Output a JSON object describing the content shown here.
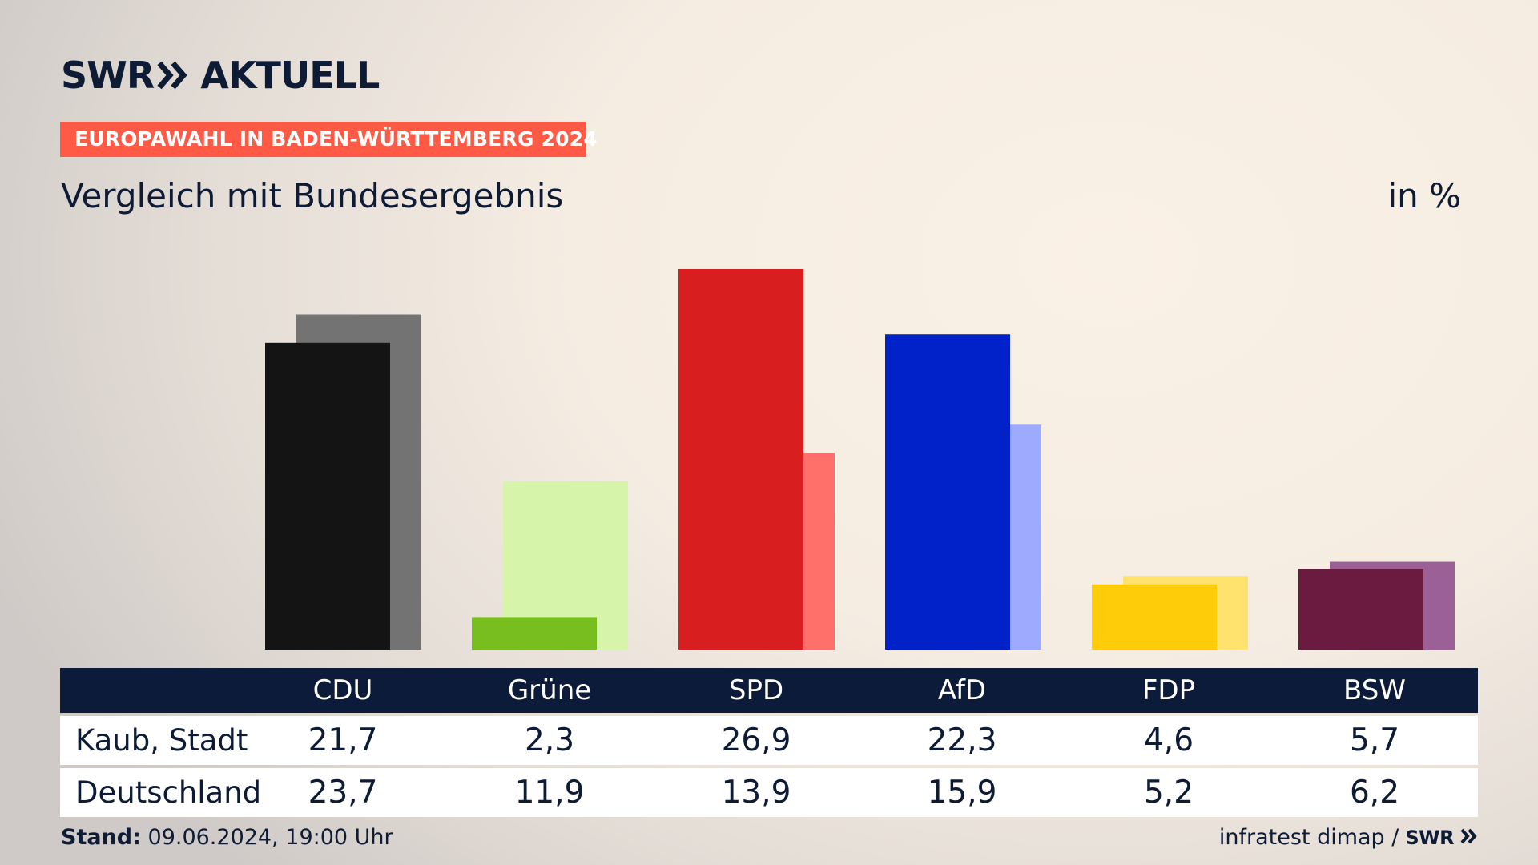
{
  "header": {
    "logo_text": "SWR",
    "logo_suffix": "AKTUELL",
    "badge": "EUROPAWAHL IN BADEN-WÜRTTEMBERG 2024",
    "subtitle": "Vergleich mit Bundesergebnis",
    "unit": "in %"
  },
  "chart_data": {
    "type": "bar",
    "title": "Vergleich mit Bundesergebnis",
    "ylabel": "in %",
    "categories": [
      "CDU",
      "Grüne",
      "SPD",
      "AfD",
      "FDP",
      "BSW"
    ],
    "series": [
      {
        "name": "Kaub, Stadt",
        "values": [
          21.7,
          2.3,
          26.9,
          22.3,
          4.6,
          5.7
        ],
        "colors": [
          "#141414",
          "#78be1e",
          "#d81e1f",
          "#0022c8",
          "#ffcc0a",
          "#6b1a40"
        ]
      },
      {
        "name": "Deutschland",
        "values": [
          23.7,
          11.9,
          13.9,
          15.9,
          5.2,
          6.2
        ],
        "colors": [
          "#737373",
          "#d7f5aa",
          "#ff706b",
          "#9eaafd",
          "#ffe36e",
          "#9b6096"
        ]
      }
    ],
    "ylim": [
      0,
      26.9
    ],
    "grid": false,
    "legend": "none"
  },
  "table": {
    "headers": [
      "CDU",
      "Grüne",
      "SPD",
      "AfD",
      "FDP",
      "BSW"
    ],
    "rows": [
      {
        "label": "Kaub, Stadt",
        "values": [
          "21,7",
          "2,3",
          "26,9",
          "22,3",
          "4,6",
          "5,7"
        ]
      },
      {
        "label": "Deutschland",
        "values": [
          "23,7",
          "11,9",
          "13,9",
          "15,9",
          "5,2",
          "6,2"
        ]
      }
    ]
  },
  "footer": {
    "stand_label": "Stand:",
    "stand_value": "09.06.2024, 19:00 Uhr",
    "source": "infratest dimap /",
    "source_logo": "SWR"
  }
}
